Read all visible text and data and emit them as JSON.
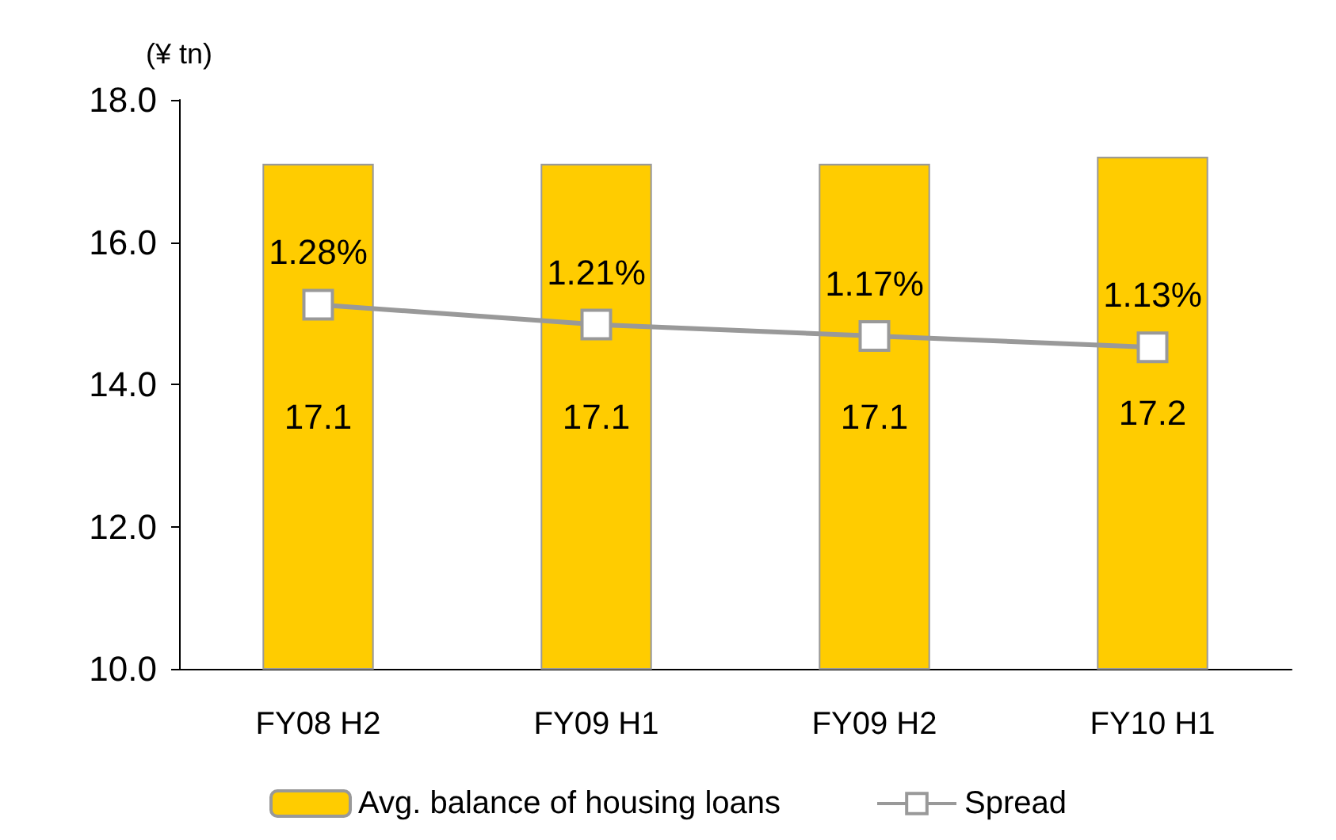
{
  "chart_data": {
    "type": "bar",
    "ylabel": "(¥ tn)",
    "categories": [
      "FY08 H2",
      "FY09 H1",
      "FY09 H2",
      "FY10 H1"
    ],
    "series": [
      {
        "name": "Avg. balance of housing loans",
        "color": "#ffcc00",
        "values": [
          17.1,
          17.1,
          17.1,
          17.2
        ],
        "data_labels": true
      },
      {
        "name": "Spread",
        "type": "line",
        "axis": "y2",
        "color": "#999999",
        "values": [
          1.28,
          1.21,
          1.17,
          1.13
        ],
        "value_labels": [
          "1.28%",
          "1.21%",
          "1.17%",
          "1.13%"
        ],
        "marker": "square"
      }
    ],
    "ylim": [
      10,
      18
    ],
    "yticks": [
      {
        "value": 10,
        "label": "10.0"
      },
      {
        "value": 12,
        "label": "12.0"
      },
      {
        "value": 14,
        "label": "14.0"
      },
      {
        "value": 16,
        "label": "16.0"
      },
      {
        "value": 18,
        "label": "18.0"
      }
    ],
    "y2lim": [
      0,
      2
    ],
    "grid": false,
    "legend": "bottom"
  }
}
